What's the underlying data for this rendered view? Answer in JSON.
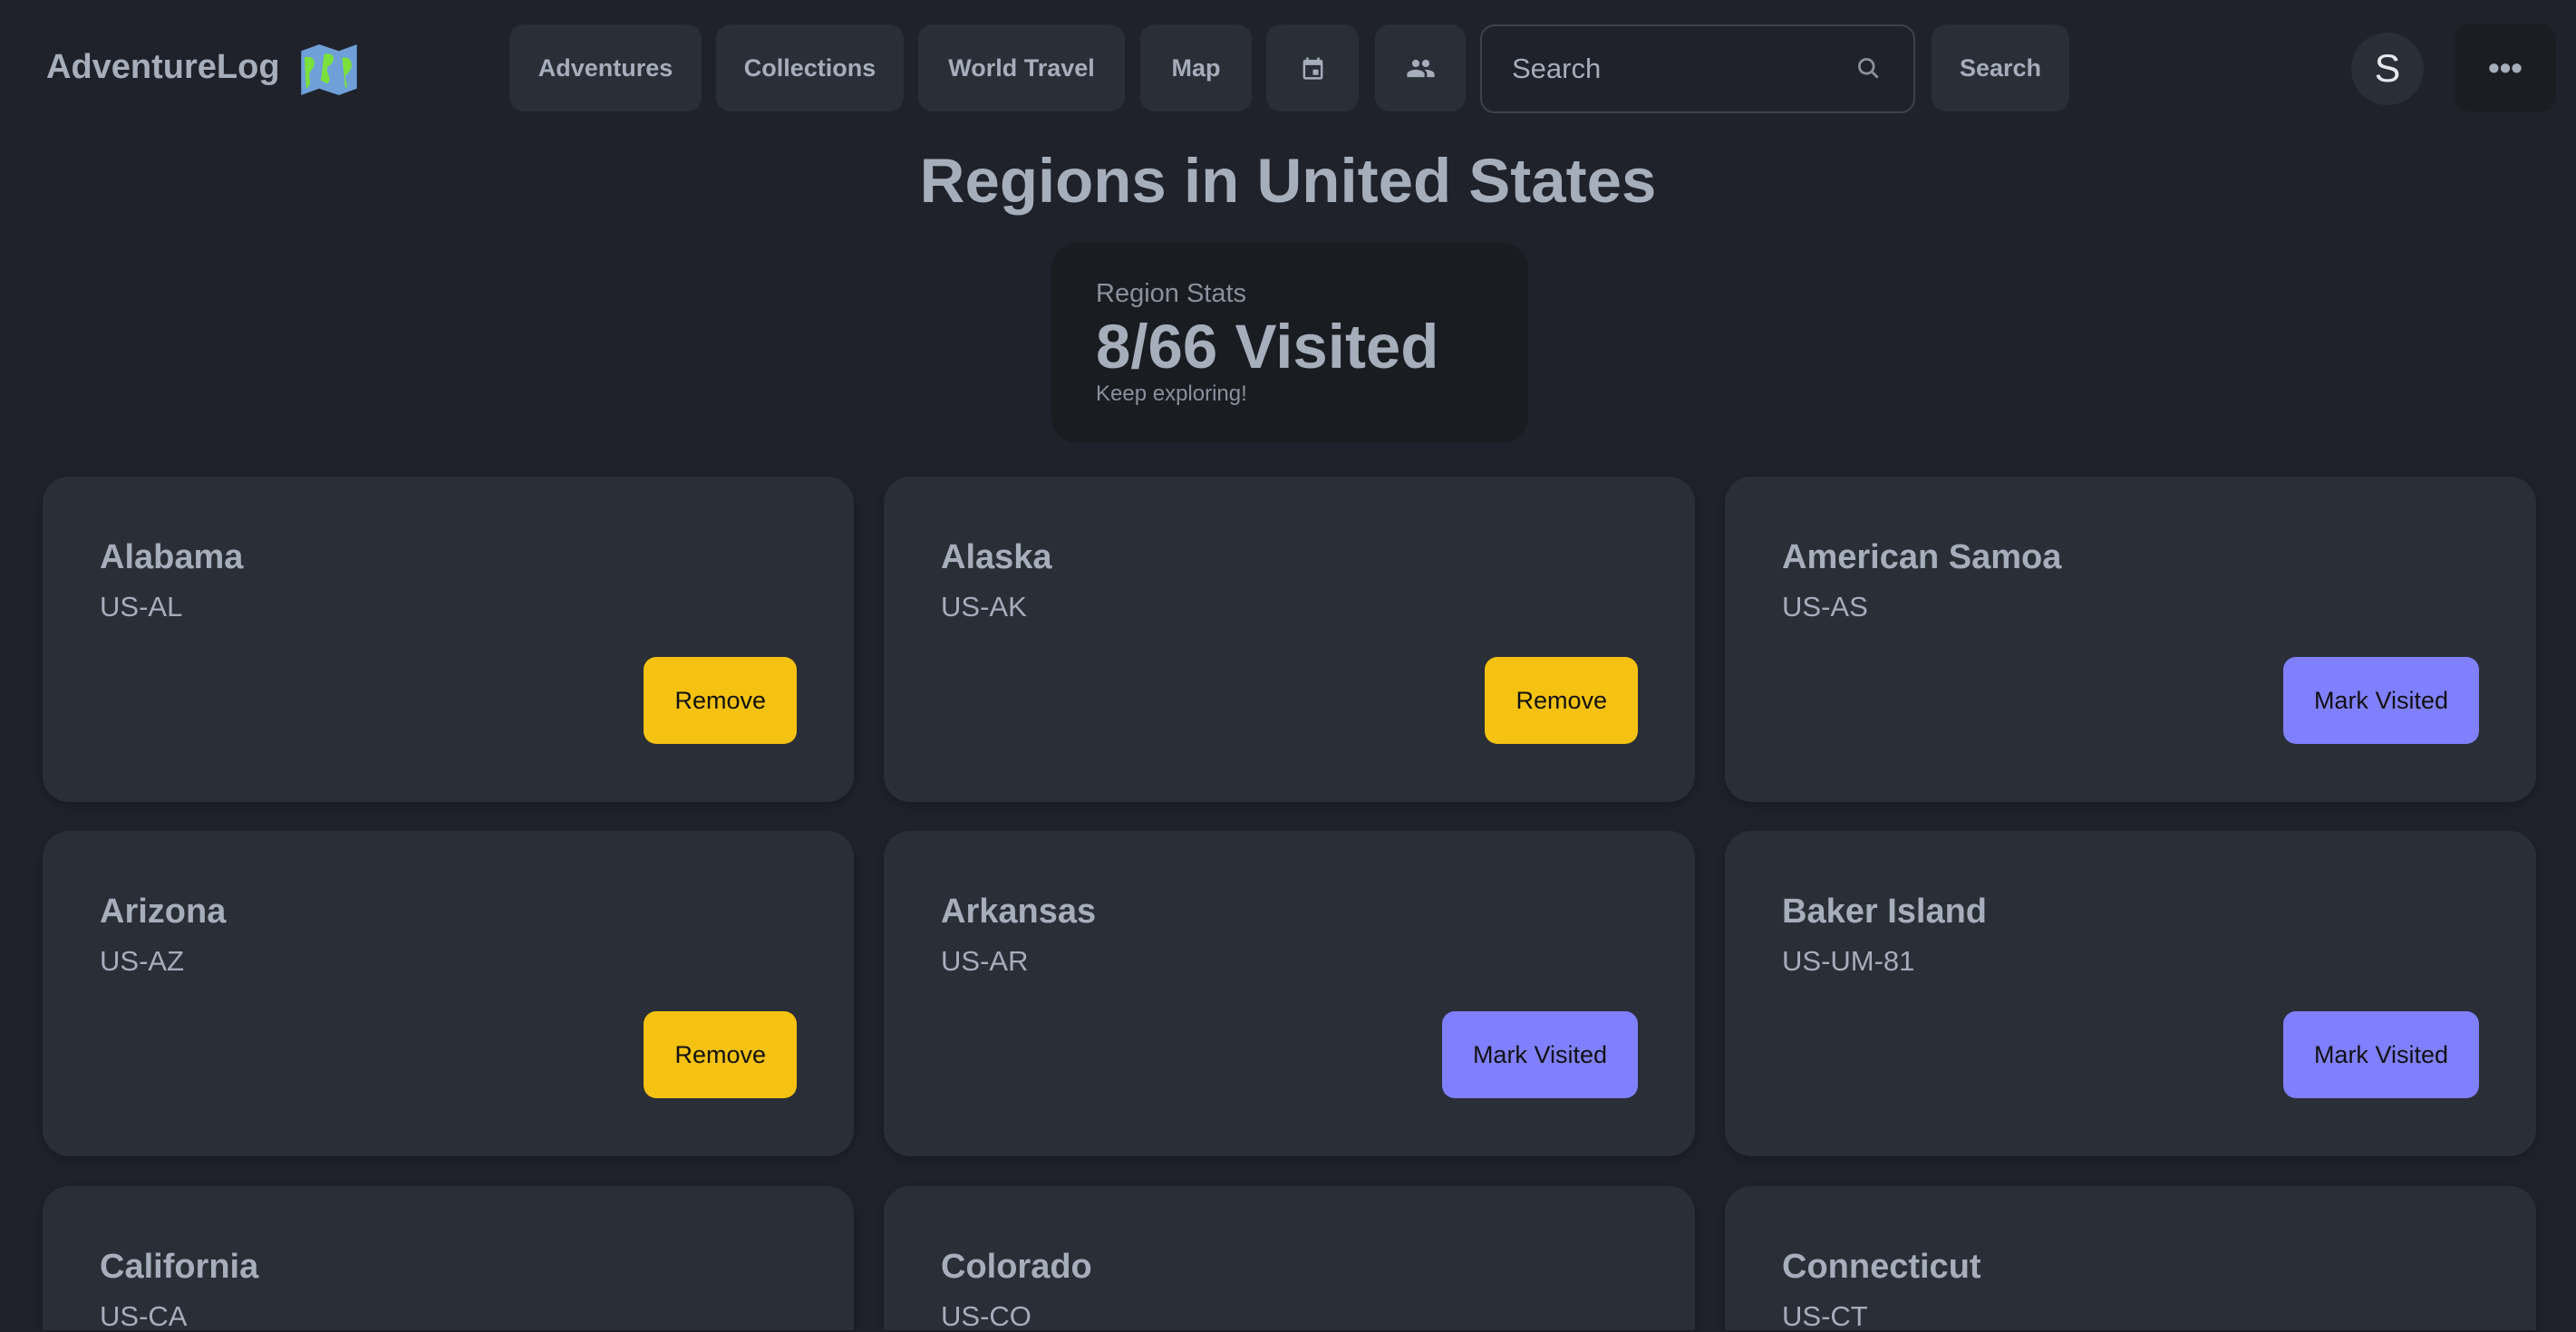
{
  "navbar": {
    "brand": "AdventureLog",
    "items": [
      {
        "label": "Adventures"
      },
      {
        "label": "Collections"
      },
      {
        "label": "World Travel"
      },
      {
        "label": "Map"
      }
    ],
    "calendar_icon": "calendar-icon",
    "users_icon": "users-icon",
    "search_placeholder": "Search",
    "search_button": "Search",
    "avatar_initial": "S",
    "more_label": "•••"
  },
  "page": {
    "title": "Regions in United States",
    "stats": {
      "label": "Region Stats",
      "value": "8/66 Visited",
      "note": "Keep exploring!"
    }
  },
  "colors": {
    "remove": "#f5c211",
    "mark_visited": "#8080ff",
    "card": "#2a2e37",
    "background": "#1f222a"
  },
  "regions": [
    {
      "name": "Alabama",
      "code": "US-AL",
      "action": "Remove",
      "visited": true
    },
    {
      "name": "Alaska",
      "code": "US-AK",
      "action": "Remove",
      "visited": true
    },
    {
      "name": "American Samoa",
      "code": "US-AS",
      "action": "Mark Visited",
      "visited": false
    },
    {
      "name": "Arizona",
      "code": "US-AZ",
      "action": "Remove",
      "visited": true
    },
    {
      "name": "Arkansas",
      "code": "US-AR",
      "action": "Mark Visited",
      "visited": false
    },
    {
      "name": "Baker Island",
      "code": "US-UM-81",
      "action": "Mark Visited",
      "visited": false
    },
    {
      "name": "California",
      "code": "US-CA",
      "action": "",
      "visited": null
    },
    {
      "name": "Colorado",
      "code": "US-CO",
      "action": "",
      "visited": null
    },
    {
      "name": "Connecticut",
      "code": "US-CT",
      "action": "",
      "visited": null
    }
  ]
}
